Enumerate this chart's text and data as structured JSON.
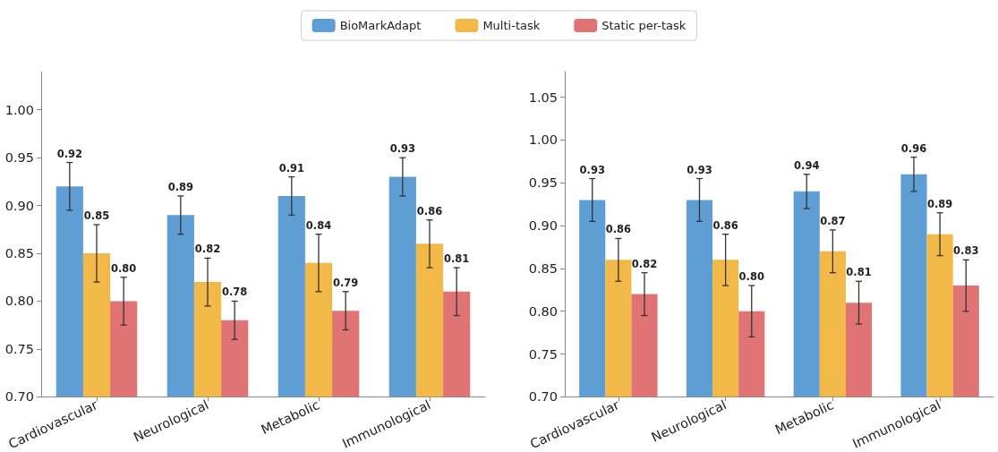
{
  "chart_data": [
    {
      "type": "bar",
      "categories": [
        "Cardiovascular",
        "Neurological",
        "Metabolic",
        "Immunological"
      ],
      "series": [
        {
          "name": "BioMarkAdapt",
          "color": "#5f9ed4",
          "values": [
            0.92,
            0.89,
            0.91,
            0.93
          ],
          "errors": [
            0.025,
            0.02,
            0.02,
            0.02
          ],
          "value_labels": [
            "0.92",
            "0.89",
            "0.91",
            "0.93"
          ]
        },
        {
          "name": "Multi-task",
          "color": "#f3b948",
          "values": [
            0.85,
            0.82,
            0.84,
            0.86
          ],
          "errors": [
            0.03,
            0.025,
            0.03,
            0.025
          ],
          "value_labels": [
            "0.85",
            "0.82",
            "0.84",
            "0.86"
          ]
        },
        {
          "name": "Static per-task",
          "color": "#e07475",
          "values": [
            0.8,
            0.78,
            0.79,
            0.81
          ],
          "errors": [
            0.025,
            0.02,
            0.02,
            0.025
          ],
          "value_labels": [
            "0.80",
            "0.78",
            "0.79",
            "0.81"
          ]
        }
      ],
      "ylim": [
        0.7,
        1.04
      ],
      "yticks": [
        {
          "value": 0.7,
          "label": "0.70"
        },
        {
          "value": 0.75,
          "label": "0.75"
        },
        {
          "value": 0.8,
          "label": "0.80"
        },
        {
          "value": 0.85,
          "label": "0.85"
        },
        {
          "value": 0.9,
          "label": "0.90"
        },
        {
          "value": 0.95,
          "label": "0.95"
        },
        {
          "value": 1.0,
          "label": "1.00"
        }
      ],
      "grid": false,
      "legend": "top"
    },
    {
      "type": "bar",
      "categories": [
        "Cardiovascular",
        "Neurological",
        "Metabolic",
        "Immunological"
      ],
      "series": [
        {
          "color": "#5f9ed4",
          "values": [
            0.93,
            0.93,
            0.94,
            0.96
          ],
          "errors": [
            0.025,
            0.025,
            0.02,
            0.02
          ],
          "value_labels": [
            "0.93",
            "0.93",
            "0.94",
            "0.96"
          ]
        },
        {
          "color": "#f3b948",
          "values": [
            0.86,
            0.86,
            0.87,
            0.89
          ],
          "errors": [
            0.025,
            0.03,
            0.025,
            0.025
          ],
          "value_labels": [
            "0.86",
            "0.86",
            "0.87",
            "0.89"
          ]
        },
        {
          "color": "#e07475",
          "values": [
            0.82,
            0.8,
            0.81,
            0.83
          ],
          "errors": [
            0.025,
            0.03,
            0.025,
            0.03
          ],
          "value_labels": [
            "0.82",
            "0.80",
            "0.81",
            "0.83"
          ]
        }
      ],
      "ylim": [
        0.7,
        1.08
      ],
      "yticks": [
        {
          "value": 0.7,
          "label": "0.70"
        },
        {
          "value": 0.75,
          "label": "0.75"
        },
        {
          "value": 0.8,
          "label": "0.80"
        },
        {
          "value": 0.85,
          "label": "0.85"
        },
        {
          "value": 0.9,
          "label": "0.90"
        },
        {
          "value": 0.95,
          "label": "0.95"
        },
        {
          "value": 1.0,
          "label": "1.00"
        },
        {
          "value": 1.05,
          "label": "1.05"
        }
      ],
      "grid": false
    }
  ]
}
